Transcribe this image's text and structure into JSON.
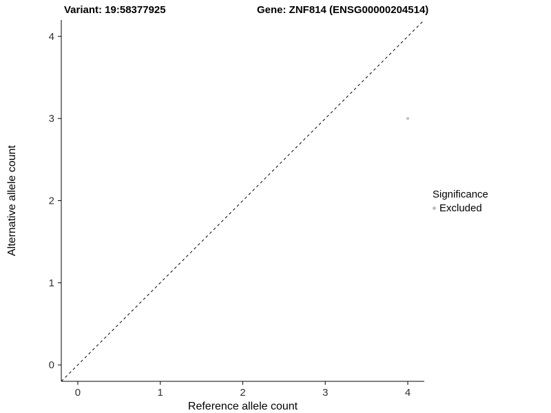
{
  "chart_data": {
    "type": "scatter",
    "title_left": "Variant: 19:58377925",
    "title_right": "Gene: ZNF814 (ENSG00000204514)",
    "xlabel": "Reference allele count",
    "ylabel": "Alternative allele count",
    "xlim": [
      -0.2,
      4.2
    ],
    "ylim": [
      -0.2,
      4.2
    ],
    "xticks": [
      0,
      1,
      2,
      3,
      4
    ],
    "yticks": [
      0,
      1,
      2,
      3,
      4
    ],
    "grid": false,
    "points": [
      {
        "x": 4,
        "y": 3,
        "series": "Excluded",
        "color": "#bebebe",
        "radius": 2
      }
    ],
    "identity_line": {
      "style": "dashed",
      "from": [
        -0.2,
        -0.2
      ],
      "to": [
        4.2,
        4.2
      ],
      "color": "#000000"
    },
    "legend": {
      "position": "right",
      "title": "Significance",
      "items": [
        {
          "label": "Excluded",
          "color": "#bebebe"
        }
      ]
    },
    "colors": {
      "axis_line": "#000000",
      "tick_label": "#303030",
      "axis_title": "#000000"
    }
  }
}
